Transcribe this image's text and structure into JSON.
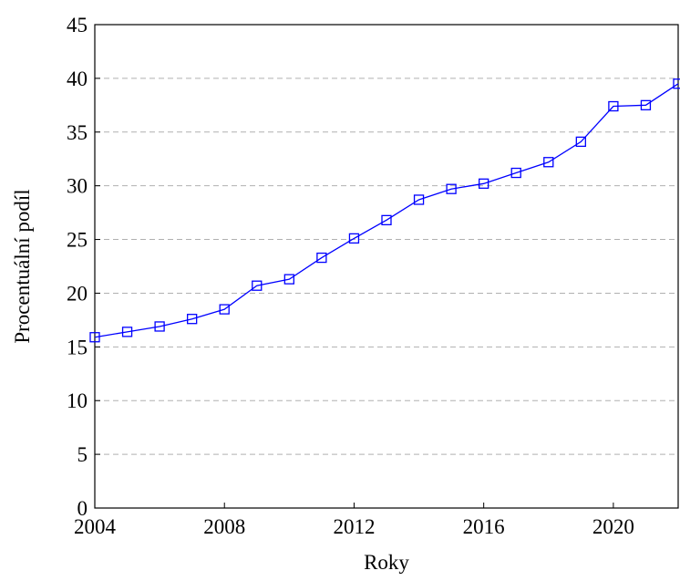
{
  "chart_data": {
    "type": "line",
    "x_label": "Roky",
    "y_label": "Procentuální podíl",
    "x": [
      2004,
      2005,
      2006,
      2007,
      2008,
      2009,
      2010,
      2011,
      2012,
      2013,
      2014,
      2015,
      2016,
      2017,
      2018,
      2019,
      2020,
      2021,
      2022
    ],
    "series": [
      {
        "color": "#0000ff",
        "values": [
          15.9,
          16.4,
          16.9,
          17.6,
          18.5,
          20.7,
          21.3,
          23.3,
          25.1,
          26.8,
          28.7,
          29.7,
          30.2,
          31.2,
          32.2,
          34.1,
          37.4,
          37.5,
          39.5
        ]
      }
    ],
    "xlim": [
      2004,
      2022
    ],
    "xticks": [
      2004,
      2008,
      2012,
      2016,
      2020
    ],
    "ylim": [
      0,
      45
    ],
    "yticks": [
      0,
      5,
      10,
      15,
      20,
      25,
      30,
      35,
      40,
      45
    ],
    "grid": true
  }
}
